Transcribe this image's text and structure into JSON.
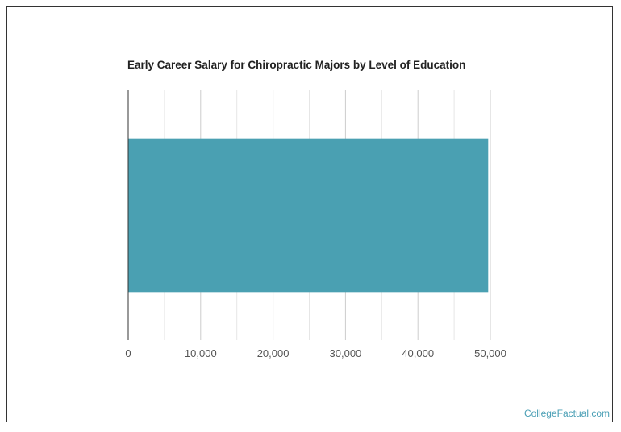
{
  "chart_data": {
    "type": "bar",
    "orientation": "horizontal",
    "title": "Early Career Salary for Chiropractic Majors by Level of Education",
    "categories": [
      ""
    ],
    "values": [
      49700
    ],
    "xlim": [
      0,
      50000
    ],
    "x_ticks": [
      0,
      10000,
      20000,
      30000,
      40000,
      50000
    ],
    "x_tick_labels": [
      "0",
      "10,000",
      "20,000",
      "30,000",
      "40,000",
      "50,000"
    ],
    "grid": true,
    "bar_color": "#4aa0b2"
  },
  "footer": {
    "credit": "CollegeFactual.com"
  }
}
